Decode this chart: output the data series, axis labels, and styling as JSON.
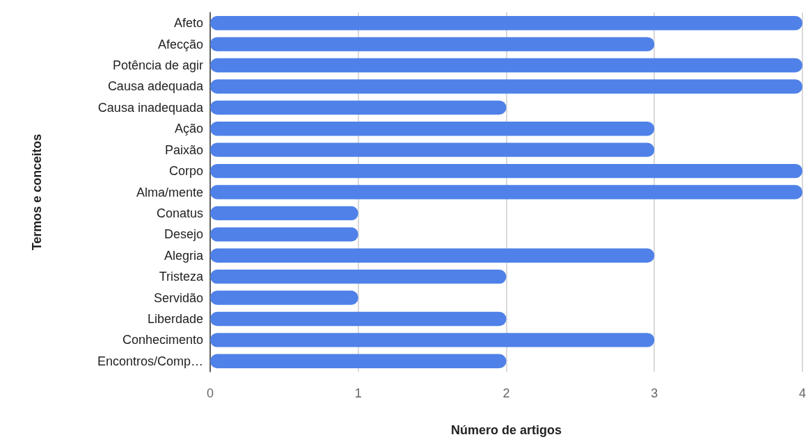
{
  "chart_data": {
    "type": "bar",
    "orientation": "horizontal",
    "xlabel": "Número de artigos",
    "ylabel": "Termos e conceitos",
    "categories": [
      "Afeto",
      "Afecção",
      "Potência de agir",
      "Causa adequada",
      "Causa inadequada",
      "Ação",
      "Paixão",
      "Corpo",
      "Alma/mente",
      "Conatus",
      "Desejo",
      "Alegria",
      "Tristeza",
      "Servidão",
      "Liberdade",
      "Conhecimento",
      "Encontros/Comp…"
    ],
    "values": [
      4,
      3,
      4,
      4,
      2,
      3,
      3,
      4,
      4,
      1,
      1,
      3,
      2,
      1,
      2,
      3,
      2
    ],
    "color": "#4f81e8",
    "xlim": [
      0,
      4
    ],
    "xticks": [
      0,
      1,
      2,
      3,
      4
    ],
    "grid": "x"
  }
}
